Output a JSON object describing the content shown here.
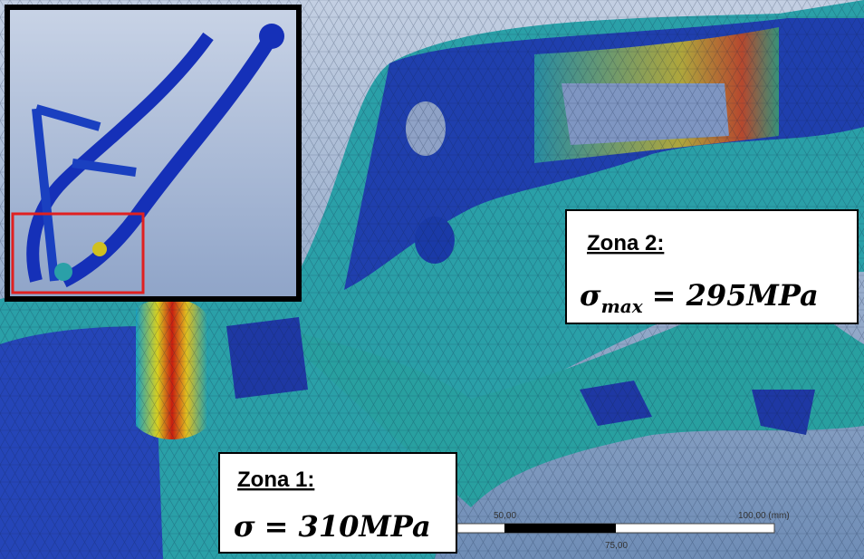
{
  "annotations": [
    {
      "title": "Zona 2:",
      "symbol": "σ",
      "subscript": "max",
      "value": "= 295MPa"
    },
    {
      "title": "Zona 1:",
      "symbol": "σ",
      "value": "= 310MPa"
    }
  ],
  "scale_bar": {
    "labels": [
      "50,00",
      "100,00 (mm)",
      "75,00"
    ]
  }
}
